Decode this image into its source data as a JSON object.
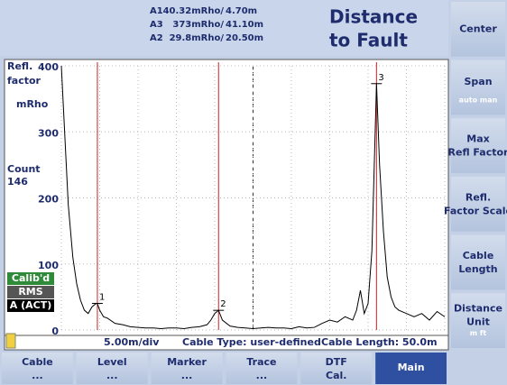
{
  "header": {
    "title_line1": "Distance",
    "title_line2": "to Fault"
  },
  "chart_data": {
    "type": "line",
    "y_label_line1": "Refl.",
    "y_label_line2": "factor",
    "y_unit": "mRho",
    "count_label": "Count",
    "count_value": "146",
    "status": [
      "Calib'd",
      "RMS",
      "A (ACT)"
    ],
    "scale_label": "5.00m/div",
    "cable_type": "Cable Type: user-defined",
    "cable_length": "Cable Length: 50.0m",
    "xlim": [
      0,
      50
    ],
    "xticks": [
      0,
      5,
      10,
      15,
      20,
      25,
      30,
      35,
      40,
      45,
      50
    ],
    "ylim": [
      0,
      400
    ],
    "yticks": [
      0,
      100,
      200,
      300,
      400
    ],
    "grid": true,
    "x": [
      0,
      0.3,
      0.6,
      0.9,
      1.2,
      1.5,
      2,
      2.5,
      3,
      3.5,
      4,
      4.5,
      4.7,
      5,
      5.5,
      6,
      7,
      8,
      9,
      10,
      11,
      12,
      13,
      14,
      15,
      16,
      17,
      18,
      19,
      19.5,
      20,
      20.5,
      21,
      22,
      23,
      24,
      25,
      26,
      27,
      28,
      29,
      30,
      31,
      32,
      33,
      34,
      35,
      36,
      37,
      38,
      38.5,
      39,
      39.5,
      40,
      40.5,
      41.1,
      41.5,
      42,
      42.5,
      43,
      43.5,
      44,
      45,
      46,
      47,
      48,
      49,
      50
    ],
    "series": [
      {
        "name": "Trace A",
        "color": "#000000",
        "values": [
          400,
          330,
          260,
          190,
          150,
          110,
          70,
          45,
          30,
          25,
          35,
          40,
          40,
          30,
          20,
          18,
          10,
          8,
          5,
          4,
          3,
          3,
          2,
          3,
          3,
          2,
          4,
          5,
          8,
          15,
          25,
          29.8,
          15,
          6,
          4,
          3,
          2,
          3,
          4,
          3,
          3,
          2,
          5,
          3,
          4,
          10,
          15,
          12,
          20,
          15,
          30,
          60,
          25,
          40,
          120,
          373,
          250,
          150,
          80,
          50,
          35,
          30,
          25,
          20,
          25,
          15,
          28,
          20
        ]
      }
    ],
    "markers": [
      {
        "id": "1",
        "name": "A1",
        "value": {
          "value": 40.32,
          "label": "40.32mRho/"
        },
        "position": {
          "value": 4.7,
          "label": "4.70m"
        }
      },
      {
        "id": "3",
        "name": "A3",
        "value": {
          "value": 373,
          "label": "373mRho/"
        },
        "position": {
          "value": 41.1,
          "label": "41.10m"
        }
      },
      {
        "id": "2",
        "name": "A2",
        "value": {
          "value": 29.8,
          "label": "29.8mRho/"
        },
        "position": {
          "value": 20.5,
          "label": "20.50m"
        }
      }
    ],
    "marker_color": "#cc2222"
  },
  "side_keys": [
    {
      "label": "Center"
    },
    {
      "label": "Span",
      "sub": "auto  man"
    },
    {
      "label": "Max Refl Factor"
    },
    {
      "label": "Refl. Factor Scale"
    },
    {
      "label": "Cable Length"
    },
    {
      "label": "Distance Unit",
      "sub": "m   ft"
    }
  ],
  "bottom_keys": [
    {
      "label": "Cable",
      "sub": "..."
    },
    {
      "label": "Level",
      "sub": "..."
    },
    {
      "label": "Marker",
      "sub": "..."
    },
    {
      "label": "Trace",
      "sub": "..."
    },
    {
      "label": "DTF",
      "sub": "Cal."
    },
    {
      "label": "Main"
    }
  ]
}
